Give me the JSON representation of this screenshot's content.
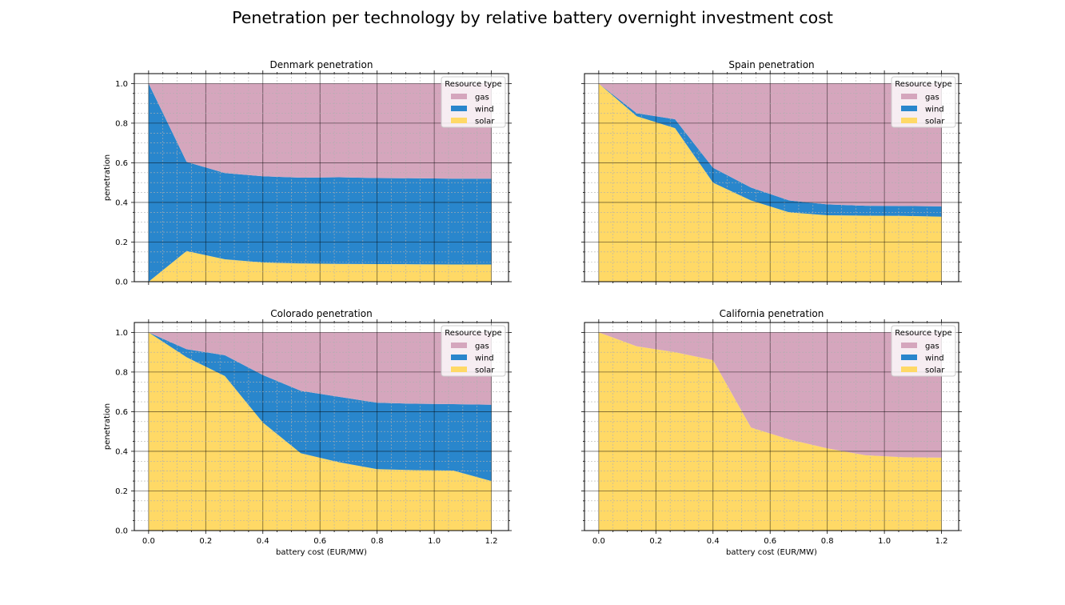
{
  "figure": {
    "title": "Penetration per technology by relative battery overnight investment cost"
  },
  "colors": {
    "gas": "#d5a6bd",
    "wind": "#2986cc",
    "solar": "#ffd966",
    "grid_major": "#000000",
    "grid_minor": "#b0b0b0"
  },
  "chart_data": [
    {
      "type": "area",
      "stacked": true,
      "title": "Denmark penetration",
      "xlabel": "",
      "ylabel": "penetration",
      "xlim": [
        -0.05,
        1.26
      ],
      "ylim": [
        0,
        1.05
      ],
      "xticks": [
        "0.0",
        "0.2",
        "0.4",
        "0.6",
        "0.8",
        "1.0",
        "1.2"
      ],
      "yticks": [
        "0.0",
        "0.2",
        "0.4",
        "0.6",
        "0.8",
        "1.0"
      ],
      "grid": true,
      "legend": {
        "title": "Resource type",
        "placement": "top-right",
        "entries": [
          "gas",
          "wind",
          "solar"
        ]
      },
      "x": [
        0,
        0.133,
        0.267,
        0.4,
        0.533,
        0.667,
        0.8,
        0.933,
        1.067,
        1.2
      ],
      "series": [
        {
          "name": "solar",
          "values": [
            0.0,
            0.155,
            0.113,
            0.097,
            0.092,
            0.09,
            0.089,
            0.088,
            0.087,
            0.087
          ]
        },
        {
          "name": "wind",
          "values": [
            1.0,
            0.45,
            0.435,
            0.435,
            0.433,
            0.437,
            0.434,
            0.434,
            0.433,
            0.433
          ]
        },
        {
          "name": "gas",
          "values": [
            0.0,
            0.395,
            0.452,
            0.468,
            0.475,
            0.473,
            0.477,
            0.478,
            0.48,
            0.48
          ]
        }
      ]
    },
    {
      "type": "area",
      "stacked": true,
      "title": "Spain penetration",
      "xlabel": "",
      "ylabel": "",
      "xlim": [
        -0.05,
        1.26
      ],
      "ylim": [
        0,
        1.05
      ],
      "xticks": [
        "0.0",
        "0.2",
        "0.4",
        "0.6",
        "0.8",
        "1.0",
        "1.2"
      ],
      "yticks": [
        "0.0",
        "0.2",
        "0.4",
        "0.6",
        "0.8",
        "1.0"
      ],
      "grid": true,
      "legend": {
        "title": "Resource type",
        "placement": "top-right",
        "entries": [
          "gas",
          "wind",
          "solar"
        ]
      },
      "x": [
        0,
        0.133,
        0.267,
        0.4,
        0.533,
        0.667,
        0.8,
        0.933,
        1.067,
        1.2
      ],
      "series": [
        {
          "name": "solar",
          "values": [
            1.0,
            0.835,
            0.775,
            0.5,
            0.41,
            0.35,
            0.335,
            0.333,
            0.332,
            0.328
          ]
        },
        {
          "name": "wind",
          "values": [
            0.0,
            0.015,
            0.045,
            0.075,
            0.065,
            0.06,
            0.055,
            0.05,
            0.05,
            0.052
          ]
        },
        {
          "name": "gas",
          "values": [
            0.0,
            0.15,
            0.18,
            0.425,
            0.525,
            0.59,
            0.61,
            0.617,
            0.618,
            0.62
          ]
        }
      ]
    },
    {
      "type": "area",
      "stacked": true,
      "title": "Colorado penetration",
      "xlabel": "battery cost (EUR/MW)",
      "ylabel": "penetration",
      "xlim": [
        -0.05,
        1.26
      ],
      "ylim": [
        0,
        1.05
      ],
      "xticks": [
        "0.0",
        "0.2",
        "0.4",
        "0.6",
        "0.8",
        "1.0",
        "1.2"
      ],
      "yticks": [
        "0.0",
        "0.2",
        "0.4",
        "0.6",
        "0.8",
        "1.0"
      ],
      "grid": true,
      "legend": {
        "title": "Resource type",
        "placement": "top-right",
        "entries": [
          "gas",
          "wind",
          "solar"
        ]
      },
      "x": [
        0,
        0.133,
        0.267,
        0.4,
        0.533,
        0.667,
        0.8,
        0.933,
        1.067,
        1.2
      ],
      "series": [
        {
          "name": "solar",
          "values": [
            1.0,
            0.875,
            0.78,
            0.545,
            0.39,
            0.345,
            0.31,
            0.305,
            0.303,
            0.25
          ]
        },
        {
          "name": "wind",
          "values": [
            0.0,
            0.04,
            0.105,
            0.24,
            0.315,
            0.33,
            0.335,
            0.335,
            0.335,
            0.385
          ]
        },
        {
          "name": "gas",
          "values": [
            0.0,
            0.085,
            0.115,
            0.215,
            0.295,
            0.325,
            0.355,
            0.36,
            0.362,
            0.365
          ]
        }
      ]
    },
    {
      "type": "area",
      "stacked": true,
      "title": "California penetration",
      "xlabel": "battery cost (EUR/MW)",
      "ylabel": "",
      "xlim": [
        -0.05,
        1.26
      ],
      "ylim": [
        0,
        1.05
      ],
      "xticks": [
        "0.0",
        "0.2",
        "0.4",
        "0.6",
        "0.8",
        "1.0",
        "1.2"
      ],
      "yticks": [
        "0.0",
        "0.2",
        "0.4",
        "0.6",
        "0.8",
        "1.0"
      ],
      "grid": true,
      "legend": {
        "title": "Resource type",
        "placement": "top-right",
        "entries": [
          "gas",
          "wind",
          "solar"
        ]
      },
      "x": [
        0,
        0.133,
        0.267,
        0.4,
        0.533,
        0.667,
        0.8,
        0.933,
        1.067,
        1.2
      ],
      "series": [
        {
          "name": "solar",
          "values": [
            1.0,
            0.93,
            0.9,
            0.86,
            0.52,
            0.46,
            0.415,
            0.38,
            0.37,
            0.368
          ]
        },
        {
          "name": "wind",
          "values": [
            0,
            0,
            0,
            0,
            0,
            0,
            0,
            0,
            0,
            0
          ]
        },
        {
          "name": "gas",
          "values": [
            0.0,
            0.07,
            0.1,
            0.14,
            0.48,
            0.54,
            0.585,
            0.62,
            0.63,
            0.632
          ]
        }
      ]
    }
  ]
}
